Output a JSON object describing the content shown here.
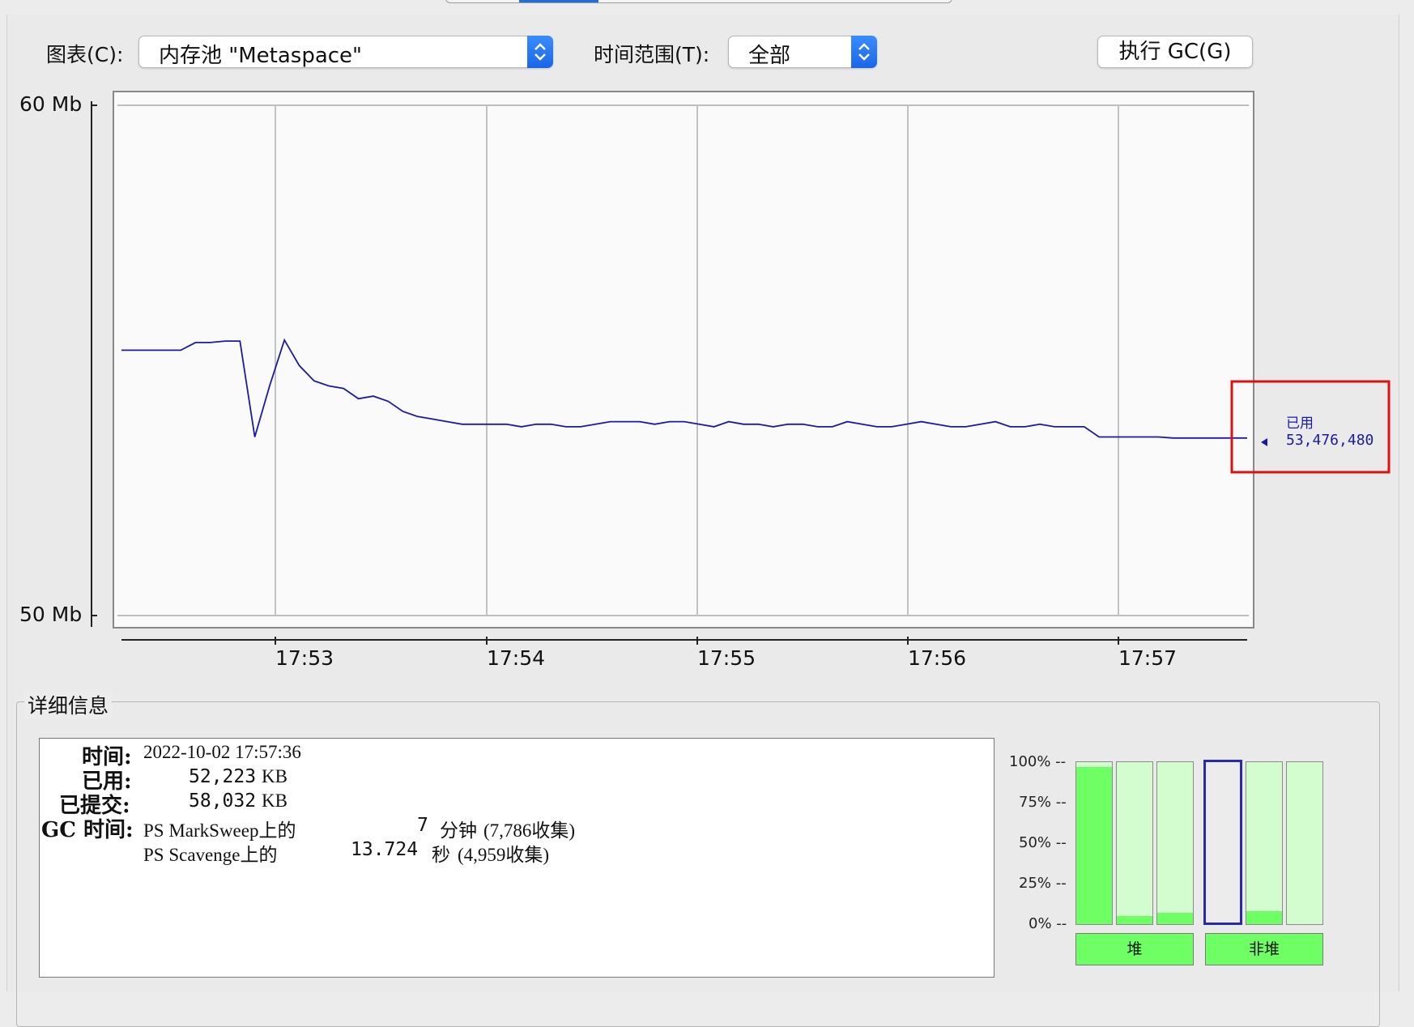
{
  "toolbar": {
    "chart_label": "图表(C):",
    "chart_value": "内存池 \"Metaspace\"",
    "range_label": "时间范围(T):",
    "range_value": "全部",
    "gc_button": "执行 GC(G)"
  },
  "chart_data": {
    "type": "line",
    "ylabel_top": "60 Mb",
    "ylabel_bottom": "50 Mb",
    "ylim_mb": [
      50,
      60
    ],
    "x_ticks": [
      "17:53",
      "17:54",
      "17:55",
      "17:56",
      "17:57"
    ],
    "series": [
      {
        "name": "已用",
        "color": "#1a1aa6",
        "values_mb": [
          55.2,
          55.2,
          55.2,
          55.2,
          55.2,
          55.35,
          55.35,
          55.38,
          55.38,
          53.5,
          54.5,
          55.4,
          54.9,
          54.6,
          54.5,
          54.45,
          54.25,
          54.3,
          54.2,
          54.0,
          53.9,
          53.85,
          53.8,
          53.75,
          53.75,
          53.75,
          53.75,
          53.7,
          53.75,
          53.75,
          53.7,
          53.7,
          53.75,
          53.8,
          53.8,
          53.8,
          53.75,
          53.8,
          53.8,
          53.75,
          53.7,
          53.8,
          53.75,
          53.75,
          53.7,
          53.75,
          53.75,
          53.7,
          53.7,
          53.8,
          53.75,
          53.7,
          53.7,
          53.75,
          53.8,
          53.75,
          53.7,
          53.7,
          53.75,
          53.8,
          53.7,
          53.7,
          53.75,
          53.7,
          53.7,
          53.7,
          53.5,
          53.5,
          53.5,
          53.5,
          53.5,
          53.48,
          53.48,
          53.48,
          53.48,
          53.48,
          53.48
        ],
        "current_label": "已用",
        "current_value": "53,476,480"
      }
    ]
  },
  "details": {
    "title": "详细信息",
    "time_key": "时间:",
    "time_val": "2022-10-02 17:57:36",
    "used_key": "已用:",
    "used_num": "52,223",
    "used_unit": "KB",
    "committed_key": "已提交:",
    "committed_num": "58,032",
    "committed_unit": "KB",
    "gc_key": "GC 时间:",
    "gc1_name": "PS MarkSweep上的",
    "gc1_num": "7",
    "gc1_unit": "分钟",
    "gc1_count": "(7,786收集)",
    "gc2_name": "PS Scavenge上的",
    "gc2_num": "13.724",
    "gc2_unit": "秒",
    "gc2_count": "(4,959收集)"
  },
  "pool_bars": {
    "ticks": [
      "100% --",
      "75% --",
      "50% --",
      "25% --",
      "0% --"
    ],
    "heap_label": "堆",
    "nonheap_label": "非堆",
    "heap_fill_fraction": [
      0.97,
      0.05,
      0.07
    ],
    "nonheap_fill_fraction": [
      0.0,
      0.08,
      0.0
    ]
  }
}
